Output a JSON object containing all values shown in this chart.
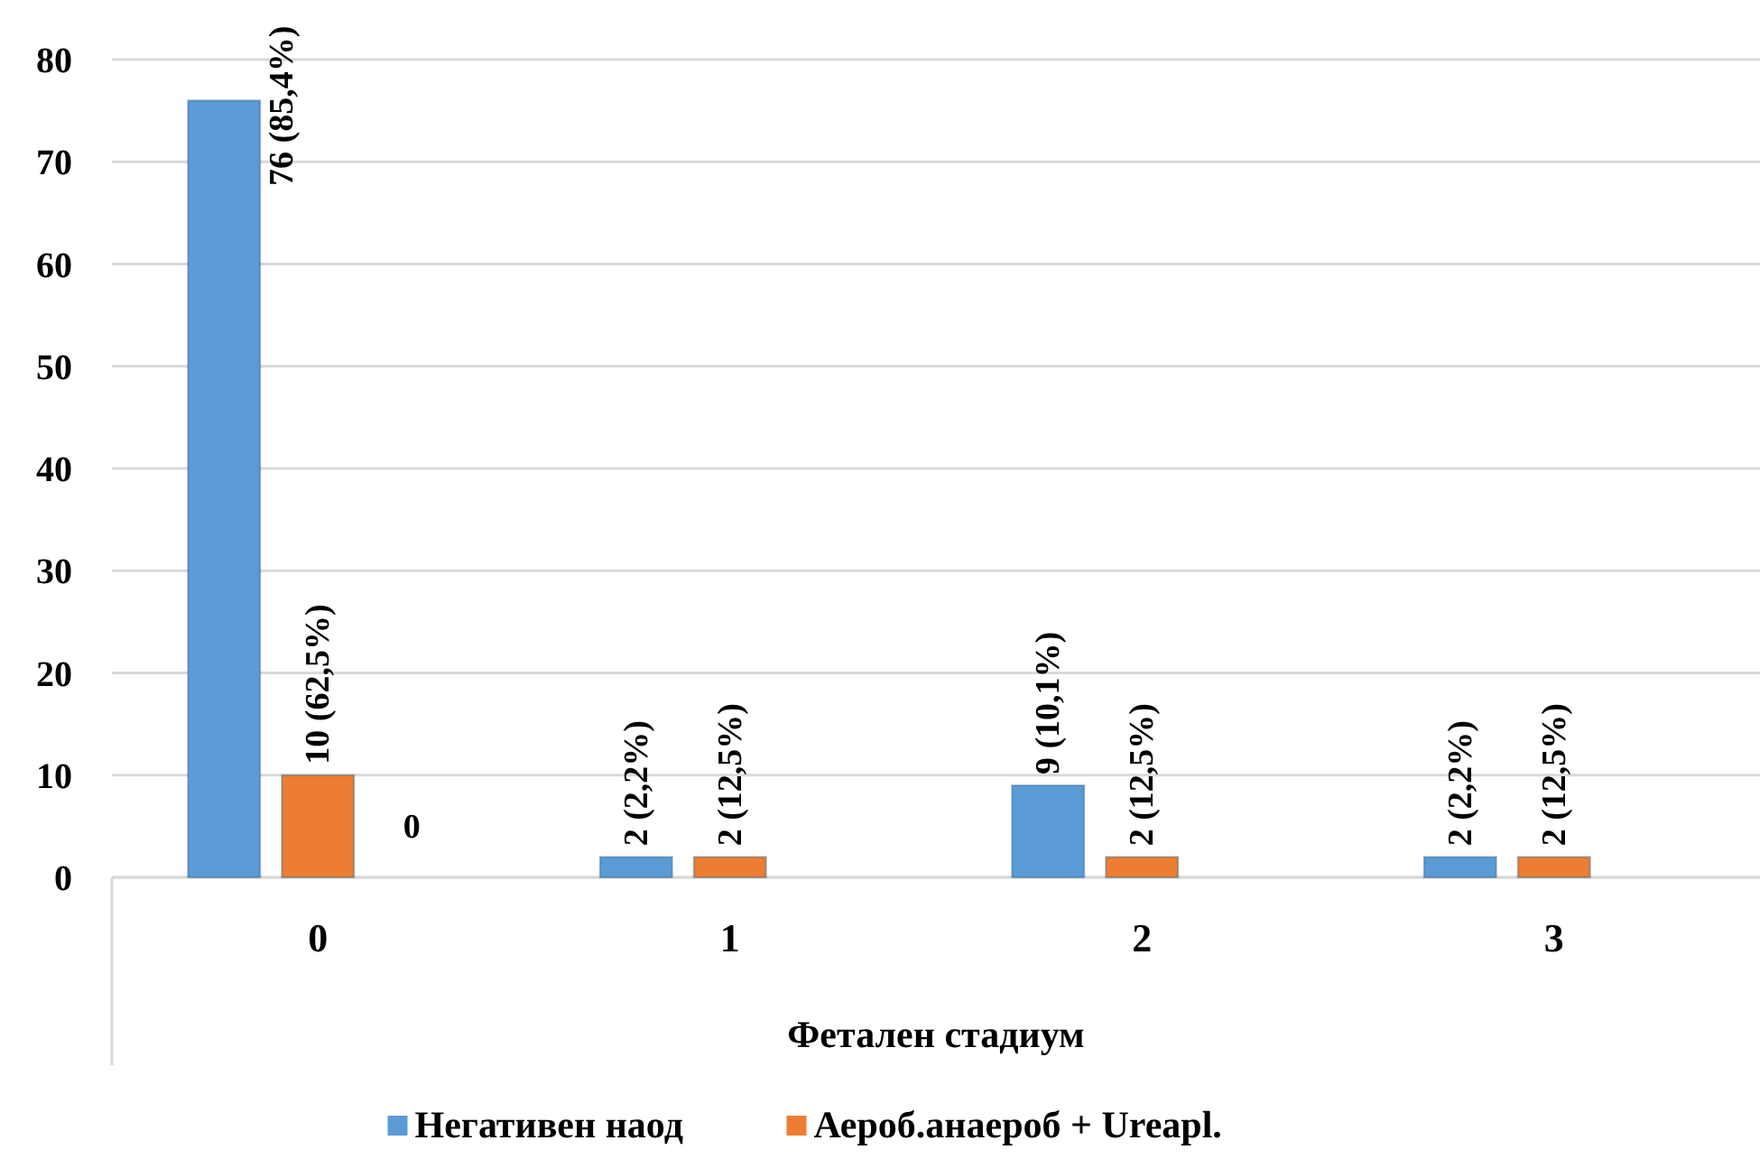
{
  "chart_data": {
    "type": "bar",
    "xlabel": "Фетален стадиум",
    "categories": [
      "0",
      "1",
      "2",
      "3"
    ],
    "series": [
      {
        "name": "Негативен наод",
        "color": "#5b9bd5",
        "values": [
          76,
          2,
          9,
          2
        ],
        "value_labels": [
          "76 (85,4%)",
          "2 (2,2%)",
          "9 (10,1%)",
          "2 (2,2%)"
        ]
      },
      {
        "name": "Аероб.анаероб + Ureapl.",
        "color": "#ed7d31",
        "values": [
          10,
          2,
          2,
          2
        ],
        "value_labels": [
          "10 (62,5%)",
          "2 (12,5%)",
          "2 (12,5%)",
          "2 (12,5%)"
        ]
      }
    ],
    "annotations": [
      {
        "text": "0",
        "x": "0",
        "y": 0
      }
    ],
    "ylim": [
      0,
      80
    ],
    "yticks": [
      0,
      10,
      20,
      30,
      40,
      50,
      60,
      70,
      80
    ],
    "grid": "y",
    "legend": "bottom"
  }
}
